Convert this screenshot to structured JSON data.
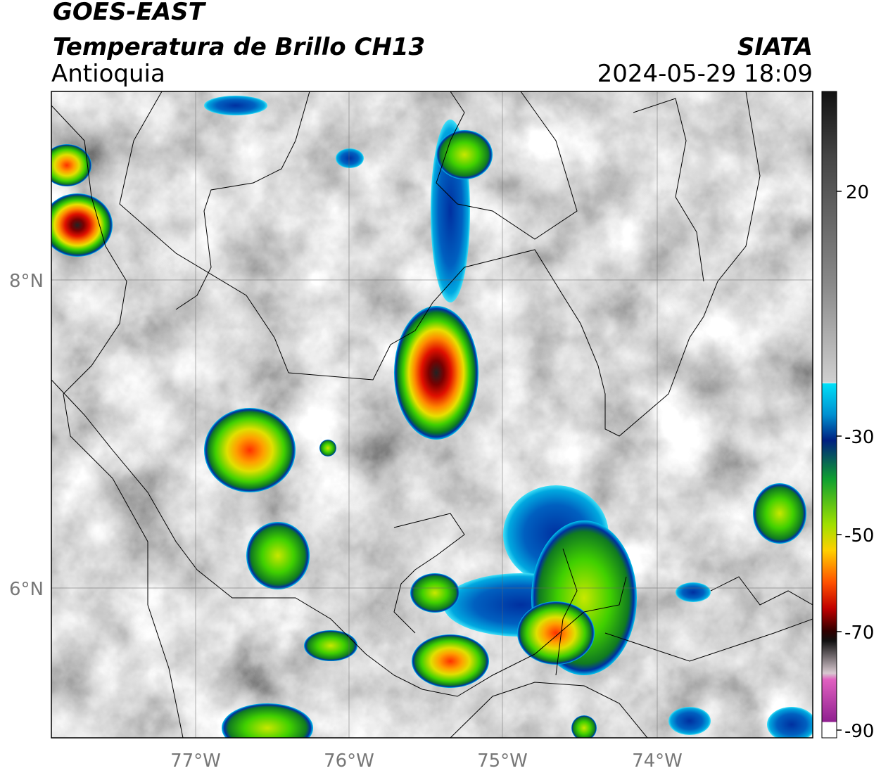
{
  "header": {
    "title": "GOES-EAST",
    "subtitle": "Temperatura de Brillo CH13",
    "source": "SIATA",
    "region": "Antioquia",
    "datetime": "2024-05-29 18:09"
  },
  "map": {
    "lat_labels": [
      "8°N",
      "6°N"
    ],
    "lon_labels": [
      "77°W",
      "76°W",
      "75°W",
      "74°W"
    ]
  },
  "colorbar": {
    "labels": [
      "20",
      "-30",
      "-50",
      "-70",
      "-90"
    ]
  }
}
